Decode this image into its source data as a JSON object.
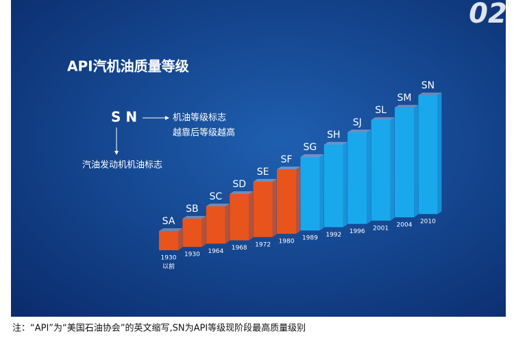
{
  "badge": "02",
  "title": "API汽机油质量等级",
  "legend": {
    "code": "S N",
    "right_line1": "机油等级标志",
    "right_line2": "越靠后等级越高",
    "below": "汽油发动机机油标志"
  },
  "grades": [
    {
      "name": "SA",
      "year": "1930",
      "year_note": "以前",
      "color": "#e8541c"
    },
    {
      "name": "SB",
      "year": "1930",
      "color": "#e8541c"
    },
    {
      "name": "SC",
      "year": "1964",
      "color": "#e8541c"
    },
    {
      "name": "SD",
      "year": "1968",
      "color": "#e8541c"
    },
    {
      "name": "SE",
      "year": "1972",
      "color": "#e8541c"
    },
    {
      "name": "SF",
      "year": "1980",
      "color": "#e8541c"
    },
    {
      "name": "SG",
      "year": "1989",
      "color": "#1aa8ec"
    },
    {
      "name": "SH",
      "year": "1992",
      "color": "#1aa8ec"
    },
    {
      "name": "SJ",
      "year": "1996",
      "color": "#1aa8ec"
    },
    {
      "name": "SL",
      "year": "2001",
      "color": "#1aa8ec"
    },
    {
      "name": "SM",
      "year": "2004",
      "color": "#1aa8ec"
    },
    {
      "name": "SN",
      "year": "2010",
      "color": "#1aa8ec"
    }
  ],
  "note": "注：“API”为“美国石油协会”的英文缩写,SN为API等级现阶段最高质量级别"
}
